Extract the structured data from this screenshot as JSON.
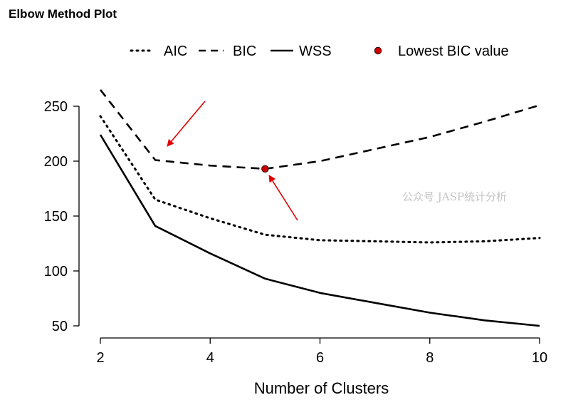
{
  "title": "Elbow Method Plot",
  "watermark": "公众号 JASP统计分析",
  "chart_data": {
    "type": "line",
    "title": "",
    "xlabel": "Number of Clusters",
    "ylabel": "",
    "x": [
      2,
      3,
      4,
      5,
      6,
      7,
      8,
      9,
      10
    ],
    "xlim": [
      2,
      10
    ],
    "ylim": [
      50,
      250
    ],
    "xticks": [
      2,
      4,
      6,
      8,
      10
    ],
    "yticks": [
      50,
      100,
      150,
      200,
      250
    ],
    "grid": false,
    "legend_position": "top",
    "series": [
      {
        "name": "AIC",
        "style": "dotted",
        "color": "#000000",
        "values": [
          241,
          165,
          148,
          133,
          128,
          127,
          126,
          127,
          130
        ]
      },
      {
        "name": "BIC",
        "style": "dashed",
        "color": "#000000",
        "values": [
          265,
          201,
          196,
          193,
          200,
          211,
          222,
          236,
          251
        ]
      },
      {
        "name": "WSS",
        "style": "solid",
        "color": "#000000",
        "values": [
          224,
          141,
          116,
          93,
          80,
          71,
          62,
          55,
          50
        ]
      }
    ],
    "highlight": {
      "name": "Lowest BIC value",
      "x": 5,
      "y": 193,
      "color": "#cc0000"
    },
    "annotations": [
      {
        "type": "arrow",
        "color": "#e00000",
        "target": "BIC elbow at 3 clusters"
      },
      {
        "type": "arrow",
        "color": "#e00000",
        "target": "Lowest BIC value at 5 clusters"
      }
    ]
  }
}
